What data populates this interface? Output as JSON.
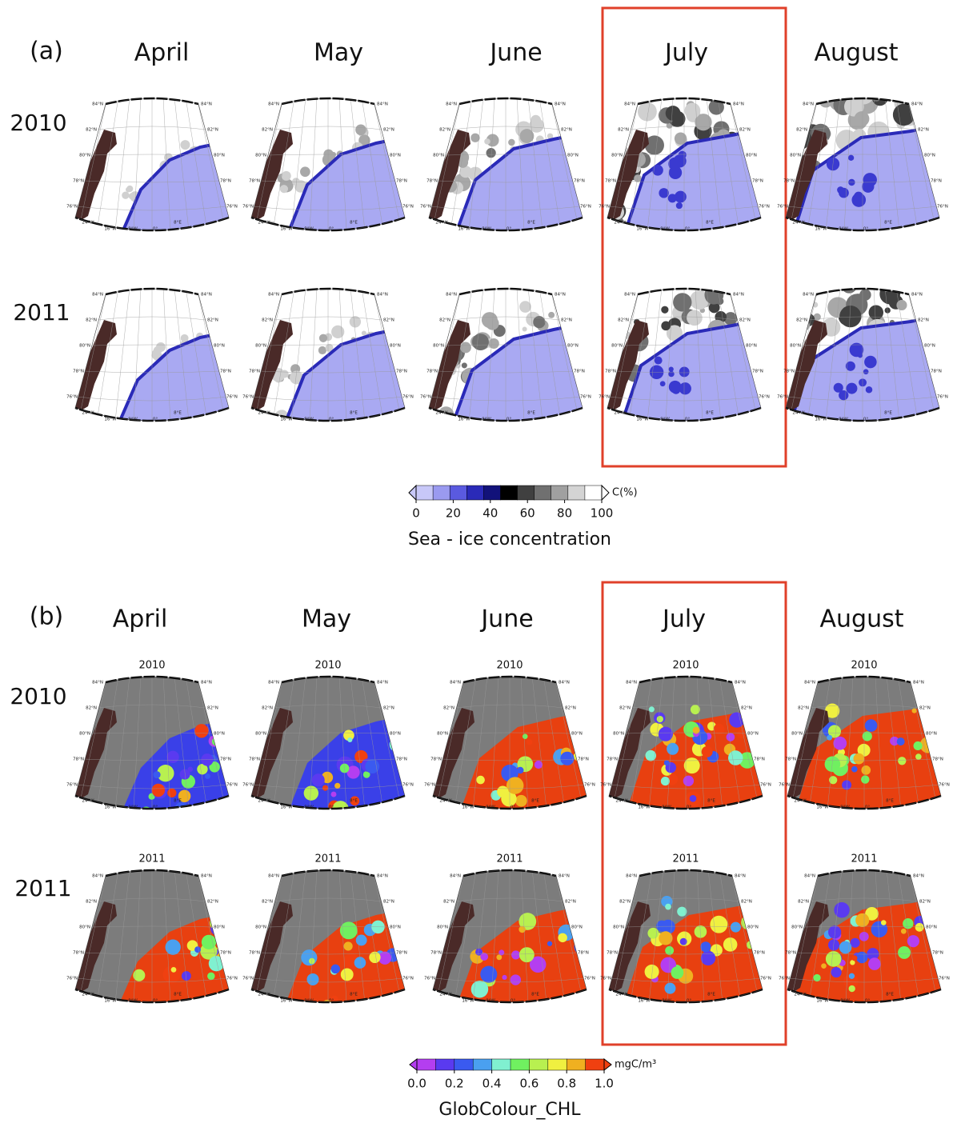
{
  "panel_a": {
    "label": "(a)",
    "months": [
      "April",
      "May",
      "June",
      "July",
      "August"
    ],
    "years": [
      "2010",
      "2011"
    ],
    "colorbar": {
      "unit": "C(%)",
      "title": "Sea - ice concentration",
      "lim": [
        0,
        100
      ],
      "ticks": [
        0,
        20,
        40,
        60,
        80,
        100
      ],
      "colors": [
        "#c8c8f8",
        "#9a9af0",
        "#5a5ae0",
        "#2a2ab8",
        "#12127a",
        "#000000",
        "#404040",
        "#707070",
        "#a0a0a0",
        "#d4d4d4",
        "#ffffff"
      ]
    }
  },
  "panel_b": {
    "label": "(b)",
    "months": [
      "April",
      "May",
      "June",
      "July",
      "August"
    ],
    "years": [
      "2010",
      "2011"
    ],
    "map_titles": [
      "2010",
      "2011"
    ],
    "colorbar": {
      "unit": "mgC/m³",
      "title": "GlobColour_CHL",
      "lim": [
        0,
        1
      ],
      "ticks": [
        {
          "value": 0,
          "label": "0.0"
        },
        {
          "value": 0.2,
          "label": "0.2"
        },
        {
          "value": 0.4,
          "label": "0.4"
        },
        {
          "value": 0.6,
          "label": "0.6"
        },
        {
          "value": 0.8,
          "label": "0.8"
        },
        {
          "value": 1,
          "label": "1.0"
        }
      ],
      "colors": [
        "#b43ef0",
        "#5a3af0",
        "#3a5af0",
        "#4aa0f0",
        "#80f0d0",
        "#70f060",
        "#b8f050",
        "#f0f040",
        "#f0b020",
        "#f04010"
      ]
    }
  },
  "map_labels": {
    "lat": [
      "84°N",
      "82°N",
      "80°N",
      "78°N",
      "76°N"
    ],
    "lon": [
      "24°W",
      "16°W",
      "8°W",
      "0°",
      "8°E"
    ]
  }
}
